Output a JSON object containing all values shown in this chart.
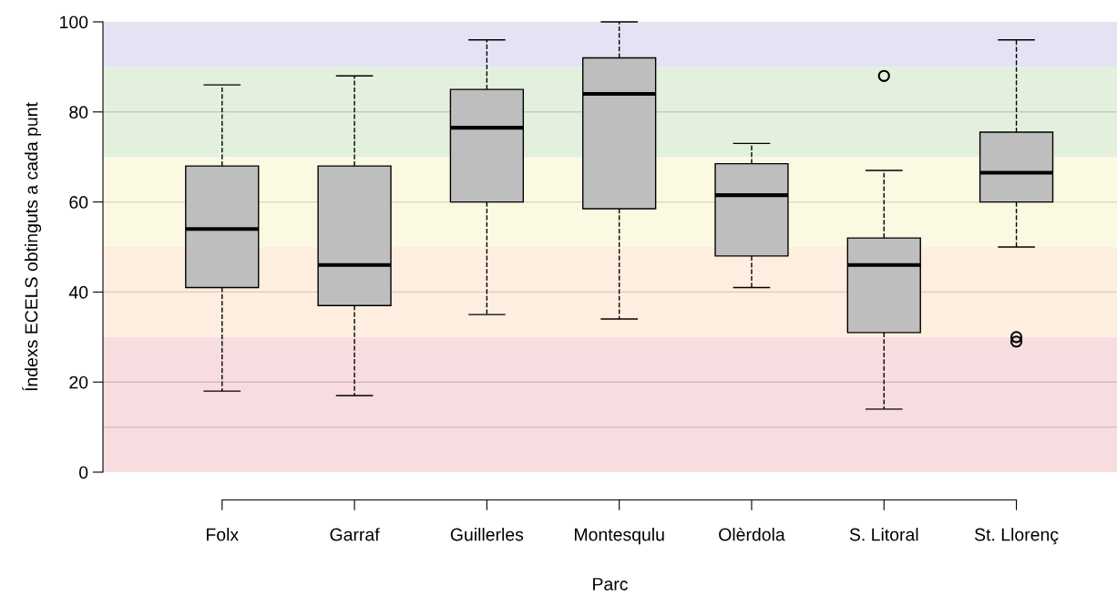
{
  "chart_data": {
    "type": "box",
    "xlabel": "Parc",
    "ylabel": "Índexs ECELS obtinguts a cada punt",
    "categories": [
      "Folx",
      "Garraf",
      "Guillerles",
      "Montesqulu",
      "Olèrdola",
      "S. Litoral",
      "St. Llorenç"
    ],
    "color": "#bebebe",
    "boxes": [
      {
        "low": 18,
        "q1": 41,
        "median": 54,
        "q3": 68,
        "high": 86
      },
      {
        "low": 17,
        "q1": 37,
        "median": 46,
        "q3": 68,
        "high": 88
      },
      {
        "low": 35,
        "q1": 60,
        "median": 76.5,
        "q3": 85,
        "high": 96
      },
      {
        "low": 34,
        "q1": 58.5,
        "median": 84,
        "q3": 92,
        "high": 100
      },
      {
        "low": 41,
        "q1": 48,
        "median": 61.5,
        "q3": 68.5,
        "high": 73
      },
      {
        "low": 14,
        "q1": 31,
        "median": 46,
        "q3": 52,
        "high": 67,
        "outliers": [
          88
        ]
      },
      {
        "low": 50,
        "q1": 60,
        "median": 66.5,
        "q3": 75.5,
        "high": 96,
        "outliers": [
          30,
          29
        ]
      }
    ],
    "ylim": [
      0,
      100
    ],
    "yticks": [
      0,
      20,
      40,
      60,
      80,
      100
    ],
    "bands": [
      {
        "axis": "y",
        "from": 0,
        "to": 30,
        "color": "#f8dde0"
      },
      {
        "axis": "y",
        "from": 30,
        "to": 50,
        "color": "#fdeee0"
      },
      {
        "axis": "y",
        "from": 50,
        "to": 70,
        "color": "#fbf9e2"
      },
      {
        "axis": "y",
        "from": 70,
        "to": 90,
        "color": "#e3f0dd"
      },
      {
        "axis": "y",
        "from": 90,
        "to": 100,
        "color": "#e3e3f3"
      }
    ],
    "ref_lines": [
      {
        "axis": "y",
        "value": 10,
        "color": "#d9b9bc"
      },
      {
        "axis": "y",
        "value": 20,
        "color": "#d9b9bc"
      },
      {
        "axis": "y",
        "value": 40,
        "color": "#dccbbb"
      },
      {
        "axis": "y",
        "value": 60,
        "color": "#d8d6bd"
      },
      {
        "axis": "y",
        "value": 80,
        "color": "#bfd3b8"
      }
    ],
    "grid": false,
    "legend": false
  }
}
